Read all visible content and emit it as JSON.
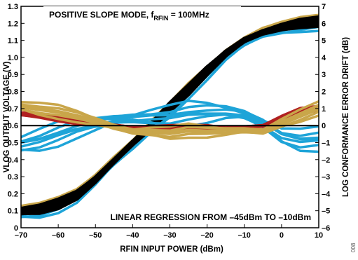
{
  "chart_data": {
    "type": "line",
    "title_main": "POSITIVE SLOPE MODE, f",
    "title_sub": "RFIN",
    "title_end": " = 100MHz",
    "annotation": "LINEAR REGRESSION FROM –45dBm TO –10dBm",
    "xlabel": "RFIN INPUT POWER (dBm)",
    "ylabel_left": "VLOG OUTPUT VOLTAGE (V)",
    "ylabel_right": "LOG CONFORMANCE ERROR DRIFT (dB)",
    "xlim": [
      -70,
      10
    ],
    "ylim_left": [
      0,
      1.3
    ],
    "ylim_right": [
      -6,
      7
    ],
    "x_ticks": [
      "–70",
      "–60",
      "–50",
      "–40",
      "–30",
      "–20",
      "–10",
      "0",
      "10"
    ],
    "y_left_ticks": [
      "0",
      "0.1",
      "0.2",
      "0.3",
      "0.4",
      "0.5",
      "0.6",
      "0.7",
      "0.8",
      "0.9",
      "1.0",
      "1.1",
      "1.2",
      "1.3"
    ],
    "y_right_ticks": [
      "–6",
      "–5",
      "–4",
      "–3",
      "–2",
      "–1",
      "0",
      "1",
      "2",
      "3",
      "4",
      "5",
      "6",
      "7"
    ],
    "figure_id": "008",
    "colors": {
      "vlog_band": "#000000",
      "blue_family": "#1ea4d8",
      "gold_family": "#c9a64a",
      "red_family": "#b02020",
      "zero_line": "#000000"
    },
    "series": [
      {
        "axis": "left",
        "color": "blue_family",
        "x": [
          -70,
          -65,
          -60,
          -55,
          -50,
          -45,
          -40,
          -35,
          -30,
          -25,
          -20,
          -15,
          -10,
          -5,
          0,
          5,
          10
        ],
        "values": [
          0.09,
          0.1,
          0.13,
          0.18,
          0.27,
          0.38,
          0.48,
          0.59,
          0.69,
          0.8,
          0.9,
          1.0,
          1.08,
          1.14,
          1.17,
          1.19,
          1.2
        ],
        "spread": 0.045
      },
      {
        "axis": "left",
        "color": "gold_family",
        "x": [
          -70,
          -65,
          -60,
          -55,
          -50,
          -45,
          -40,
          -35,
          -30,
          -25,
          -20,
          -15,
          -10,
          -5,
          0,
          5,
          10
        ],
        "values": [
          0.12,
          0.13,
          0.16,
          0.21,
          0.3,
          0.41,
          0.51,
          0.62,
          0.72,
          0.83,
          0.93,
          1.03,
          1.11,
          1.17,
          1.2,
          1.22,
          1.23
        ],
        "spread": 0.02
      },
      {
        "axis": "left",
        "color": "vlog_band",
        "x": [
          -70,
          -65,
          -60,
          -55,
          -50,
          -45,
          -40,
          -35,
          -30,
          -25,
          -20,
          -15,
          -10,
          -5,
          0,
          5,
          10
        ],
        "values": [
          0.1,
          0.11,
          0.14,
          0.19,
          0.28,
          0.39,
          0.5,
          0.6,
          0.71,
          0.81,
          0.92,
          1.02,
          1.1,
          1.15,
          1.18,
          1.2,
          1.21
        ],
        "spread": 0.025
      },
      {
        "axis": "right",
        "color": "blue_family",
        "x": [
          -70,
          -65,
          -60,
          -55,
          -50,
          -45,
          -40,
          -35,
          -30,
          -25,
          -20,
          -15,
          -10,
          -5,
          0,
          5,
          10
        ],
        "values": [
          -1.0,
          -0.8,
          -0.5,
          -0.2,
          0.0,
          0.3,
          0.5,
          0.6,
          0.6,
          0.7,
          0.7,
          0.7,
          0.6,
          0.2,
          -0.5,
          -0.8,
          -0.8
        ],
        "spread": 0.75
      },
      {
        "axis": "right",
        "color": "red_family",
        "x": [
          -70,
          -65,
          -60,
          -55,
          -50,
          -45,
          -40,
          -35,
          -30,
          -25,
          -20,
          -15,
          -10,
          -5,
          0,
          5,
          10
        ],
        "values": [
          0.7,
          0.6,
          0.4,
          0.2,
          0.1,
          0.0,
          -0.1,
          -0.1,
          -0.1,
          -0.1,
          -0.1,
          -0.2,
          -0.1,
          0.0,
          0.5,
          0.9,
          1.0
        ],
        "spread": 0.15
      },
      {
        "axis": "right",
        "color": "gold_family",
        "x": [
          -70,
          -65,
          -60,
          -55,
          -50,
          -45,
          -40,
          -35,
          -30,
          -25,
          -20,
          -15,
          -10,
          -5,
          0,
          5,
          10
        ],
        "values": [
          1.2,
          1.0,
          0.8,
          0.5,
          0.2,
          -0.1,
          -0.3,
          -0.3,
          -0.4,
          -0.3,
          -0.4,
          -0.4,
          -0.3,
          -0.3,
          0.2,
          0.6,
          1.0
        ],
        "spread": 0.42
      },
      {
        "axis": "right",
        "color": "zero_line",
        "x": [
          -70,
          10
        ],
        "values": [
          0,
          0
        ],
        "spread": 0
      }
    ]
  }
}
